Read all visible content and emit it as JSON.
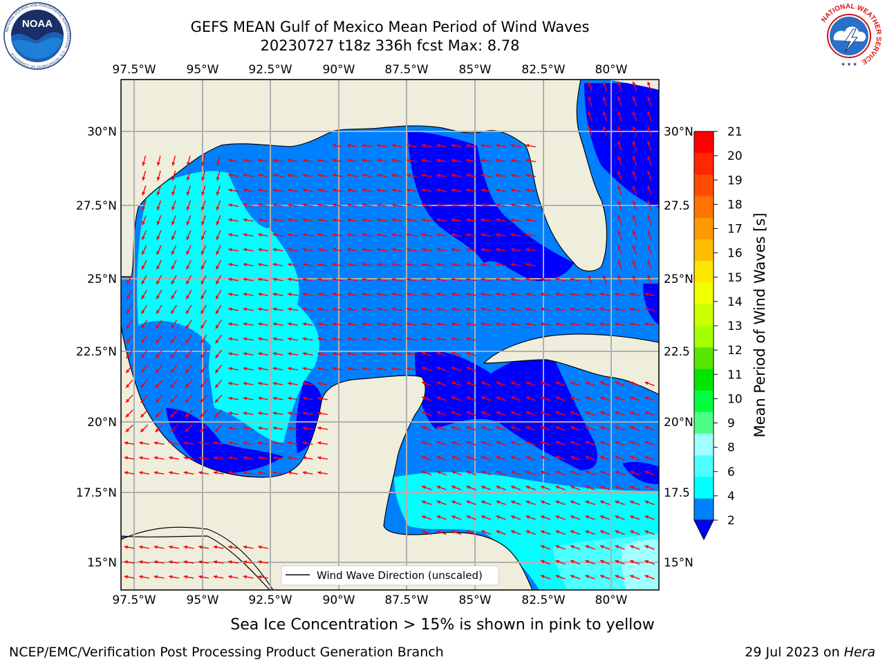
{
  "title": {
    "line1": "GEFS MEAN Gulf of Mexico Mean Period of Wind Waves",
    "line2": "20230727 t18z 336h fcst   Max: 8.78"
  },
  "axes": {
    "lon_labels": [
      "97.5°W",
      "95°W",
      "92.5°W",
      "90°W",
      "87.5°W",
      "85°W",
      "82.5°W",
      "80°W"
    ],
    "lat_labels_left": [
      "30°N",
      "27.5°N",
      "25°N",
      "22.5°N",
      "20°N",
      "17.5°N",
      "15°N"
    ],
    "lat_labels_right": [
      "30°N",
      "27.5",
      "25°N",
      "22.5",
      "20°N",
      "17.5",
      "15°N"
    ]
  },
  "colorbar": {
    "label": "Mean Period of Wind Waves [s]",
    "ticks": [
      "21",
      "20",
      "19",
      "18",
      "17",
      "16",
      "15",
      "14",
      "13",
      "12",
      "11",
      "10",
      "9",
      "8",
      "6",
      "4",
      "2"
    ],
    "colors": [
      "#ff0000",
      "#ff2600",
      "#ff4c00",
      "#ff7300",
      "#ff9900",
      "#ffbf00",
      "#ffe600",
      "#f2ff00",
      "#ccff00",
      "#a6ff00",
      "#59e600",
      "#00e600",
      "#00ff40",
      "#4dff88",
      "#a0ffff",
      "#4dffff",
      "#00ffff",
      "#0080ff",
      "#0000ff"
    ]
  },
  "legend": {
    "label": "Wind Wave Direction (unscaled)"
  },
  "icons": {
    "left": "noaa-logo",
    "right": "nws-logo"
  },
  "noaa_logo": {
    "text": "NOAA",
    "ring_text": "NATIONAL OCEANIC AND ATMOSPHERIC ADMINISTRATION · U.S. DEPARTMENT OF COMMERCE"
  },
  "nws_logo": {
    "ring_text": "NATIONAL WEATHER SERVICE"
  },
  "caption": "Sea Ice Concentration > 15% is shown in pink to yellow",
  "footer": {
    "left": "NCEP/EMC/Verification Post Processing Product Generation Branch",
    "right_date": "29 Jul 2023 on",
    "right_host": "Hera"
  }
}
